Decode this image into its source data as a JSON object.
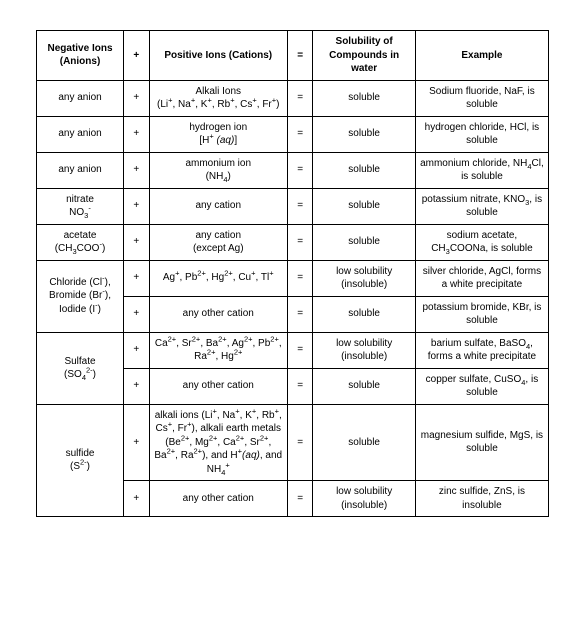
{
  "table": {
    "background_color": "#ffffff",
    "border_color": "#000000",
    "text_color": "#000000",
    "font_family": "Verdana, Arial, sans-serif",
    "font_size_pt": 8,
    "columns": [
      {
        "key": "anion",
        "header": "Negative Ions (Anions)",
        "width_pct": 17
      },
      {
        "key": "plus",
        "header": "+",
        "width_pct": 5
      },
      {
        "key": "cation",
        "header": "Positive Ions (Cations)",
        "width_pct": 27
      },
      {
        "key": "eq",
        "header": "=",
        "width_pct": 5
      },
      {
        "key": "sol",
        "header": "Solubility of Compounds in water",
        "width_pct": 20
      },
      {
        "key": "ex",
        "header": "Example",
        "width_pct": 26
      }
    ],
    "rows": [
      {
        "anion": {
          "html": "any anion"
        },
        "plus": "+",
        "cation": {
          "html": "Alkali Ions<br>(Li<sup>+</sup>, Na<sup>+</sup>, K<sup>+</sup>, Rb<sup>+</sup>, Cs<sup>+</sup>, Fr<sup>+</sup>)"
        },
        "eq": "=",
        "sol": "soluble",
        "ex": {
          "html": "Sodium fluoride, NaF, is soluble"
        }
      },
      {
        "anion": {
          "html": "any anion"
        },
        "plus": "+",
        "cation": {
          "html": "hydrogen ion<br>[H<sup>+</sup> <i>(aq)</i>]"
        },
        "eq": "=",
        "sol": "soluble",
        "ex": {
          "html": "hydrogen chloride, HCl, is soluble"
        }
      },
      {
        "anion": {
          "html": "any anion"
        },
        "plus": "+",
        "cation": {
          "html": "ammonium ion<br>(NH<sub>4</sub>)"
        },
        "eq": "=",
        "sol": "soluble",
        "ex": {
          "html": "ammonium chloride, NH<sub>4</sub>Cl, is soluble"
        }
      },
      {
        "anion": {
          "html": "nitrate<br>NO<sub>3</sub><sup>-</sup>"
        },
        "plus": "+",
        "cation": {
          "html": "any cation"
        },
        "eq": "=",
        "sol": "soluble",
        "ex": {
          "html": "potassium nitrate, KNO<sub>3</sub>, is soluble"
        }
      },
      {
        "anion": {
          "html": "acetate<br>(CH<sub>3</sub>COO<sup>-</sup>)"
        },
        "plus": "+",
        "cation": {
          "html": "any cation<br>(except Ag)"
        },
        "eq": "=",
        "sol": "soluble",
        "ex": {
          "html": "sodium acetate, CH<sub>3</sub>COONa, is soluble"
        }
      },
      {
        "anion": {
          "html": "Chloride (Cl<sup>-</sup>), Bromide (Br<sup>-</sup>), Iodide (I<sup>-</sup>)",
          "rowspan": 2
        },
        "plus": "+",
        "cation": {
          "html": "Ag<sup>+</sup>, Pb<sup>2+</sup>, Hg<sup>2+</sup>, Cu<sup>+</sup>, Tl<sup>+</sup>"
        },
        "eq": "=",
        "sol": "low solubility (insoluble)",
        "ex": {
          "html": "silver chloride, AgCl, forms a white precipitate"
        }
      },
      {
        "plus": "+",
        "cation": {
          "html": "any other cation"
        },
        "eq": "=",
        "sol": "soluble",
        "ex": {
          "html": "potassium bromide, KBr, is soluble"
        }
      },
      {
        "anion": {
          "html": "Sulfate<br>(SO<sub>4</sub><sup>2-</sup>)",
          "rowspan": 2
        },
        "plus": "+",
        "cation": {
          "html": "Ca<sup>2+</sup>, Sr<sup>2+</sup>, Ba<sup>2+</sup>, Ag<sup>2+</sup>, Pb<sup>2+</sup>, Ra<sup>2+</sup>, Hg<sup>2+</sup>"
        },
        "eq": "=",
        "sol": "low solubility (insoluble)",
        "ex": {
          "html": "barium sulfate, BaSO<sub>4</sub>, forms a white precipitate"
        }
      },
      {
        "plus": "+",
        "cation": {
          "html": "any other cation"
        },
        "eq": "=",
        "sol": "soluble",
        "ex": {
          "html": "copper sulfate, CuSO<sub>4</sub>, is soluble"
        }
      },
      {
        "anion": {
          "html": "sulfide<br>(S<sup>2-</sup>)",
          "rowspan": 2
        },
        "plus": "+",
        "cation": {
          "html": "alkali ions (Li<sup>+</sup>, Na<sup>+</sup>, K<sup>+</sup>, Rb<sup>+</sup>, Cs<sup>+</sup>, Fr<sup>+</sup>), alkali earth metals (Be<sup>2+</sup>, Mg<sup>2+</sup>, Ca<sup>2+</sup>, Sr<sup>2+</sup>, Ba<sup>2+</sup>, Ra<sup>2+</sup>), and H<sup>+</sup><i>(aq)</i>, and NH<sub>4</sub><sup>+</sup>"
        },
        "eq": "=",
        "sol": "soluble",
        "ex": {
          "html": "magnesium sulfide, MgS, is soluble"
        }
      },
      {
        "plus": "+",
        "cation": {
          "html": "any other cation"
        },
        "eq": "=",
        "sol": "low solubility (insoluble)",
        "ex": {
          "html": "zinc sulfide, ZnS, is insoluble"
        }
      }
    ]
  }
}
